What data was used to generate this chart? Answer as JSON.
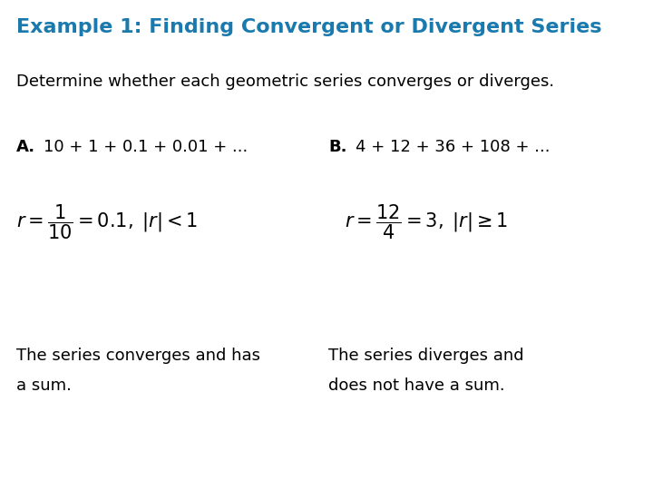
{
  "title": "Example 1: Finding Convergent or Divergent Series",
  "title_color": "#1a7aad",
  "subtitle": "Determine whether each geometric series converges or diverges.",
  "part_a_label": "A.",
  "part_a_series": "10 + 1 + 0.1 + 0.01 + ...",
  "part_b_label": "B.",
  "part_b_series": "4 + 12 + 36 + 108 + ...",
  "conclusion_a_line1": "The series converges and has",
  "conclusion_a_line2": "a sum.",
  "conclusion_b_line1": "The series diverges and",
  "conclusion_b_line2": "does not have a sum.",
  "bg_color": "#ffffff",
  "text_color": "#000000",
  "header_color": "#1a7aad",
  "title_fontsize": 16,
  "subtitle_fontsize": 13,
  "series_fontsize": 13,
  "formula_fontsize": 15,
  "conclusion_fontsize": 13
}
